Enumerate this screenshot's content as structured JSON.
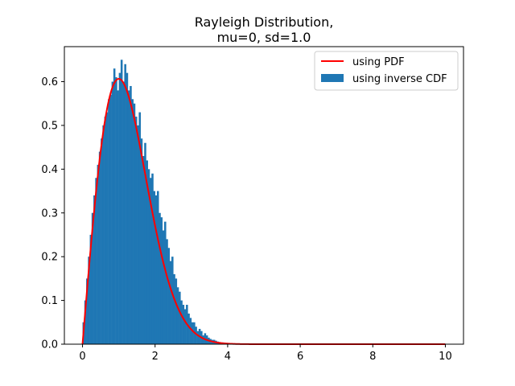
{
  "chart_data": {
    "type": "bar",
    "title": [
      "Rayleigh Distribution,",
      "mu=0, sd=1.0"
    ],
    "xlabel": "",
    "ylabel": "",
    "xlim": [
      -0.5,
      10.5
    ],
    "ylim": [
      0,
      0.68
    ],
    "xticks": [
      0,
      2,
      4,
      6,
      8,
      10
    ],
    "yticks": [
      0.0,
      0.1,
      0.2,
      0.3,
      0.4,
      0.5,
      0.6
    ],
    "xtick_labels": [
      "0",
      "2",
      "4",
      "6",
      "8",
      "10"
    ],
    "ytick_labels": [
      "0.0",
      "0.1",
      "0.2",
      "0.3",
      "0.4",
      "0.5",
      "0.6"
    ],
    "grid": false,
    "legend_position": "top-right",
    "series": [
      {
        "name": "using PDF",
        "kind": "line",
        "color": "#ff0000",
        "function": "x * exp(-x^2 / 2)",
        "x_range": [
          0,
          10
        ]
      },
      {
        "name": "using inverse CDF",
        "kind": "histogram",
        "color": "#1f77b4",
        "bin_width": 0.05,
        "bin_start": 0.0,
        "heights": [
          0.05,
          0.1,
          0.15,
          0.2,
          0.25,
          0.3,
          0.34,
          0.38,
          0.41,
          0.44,
          0.47,
          0.5,
          0.52,
          0.53,
          0.56,
          0.57,
          0.6,
          0.63,
          0.61,
          0.58,
          0.62,
          0.65,
          0.6,
          0.64,
          0.62,
          0.58,
          0.59,
          0.56,
          0.55,
          0.52,
          0.5,
          0.53,
          0.47,
          0.43,
          0.46,
          0.42,
          0.4,
          0.38,
          0.39,
          0.35,
          0.34,
          0.35,
          0.3,
          0.29,
          0.26,
          0.28,
          0.24,
          0.22,
          0.19,
          0.2,
          0.16,
          0.15,
          0.13,
          0.12,
          0.1,
          0.09,
          0.08,
          0.09,
          0.07,
          0.06,
          0.05,
          0.05,
          0.04,
          0.03,
          0.035,
          0.03,
          0.02,
          0.025,
          0.02,
          0.015,
          0.012,
          0.01,
          0.01,
          0.008,
          0.006,
          0.005,
          0.004,
          0.004,
          0.003,
          0.003,
          0.002,
          0.002,
          0.0015,
          0.001,
          0.001,
          0.0008,
          0.0006,
          0.0005,
          0.0004,
          0.0003
        ]
      }
    ]
  }
}
